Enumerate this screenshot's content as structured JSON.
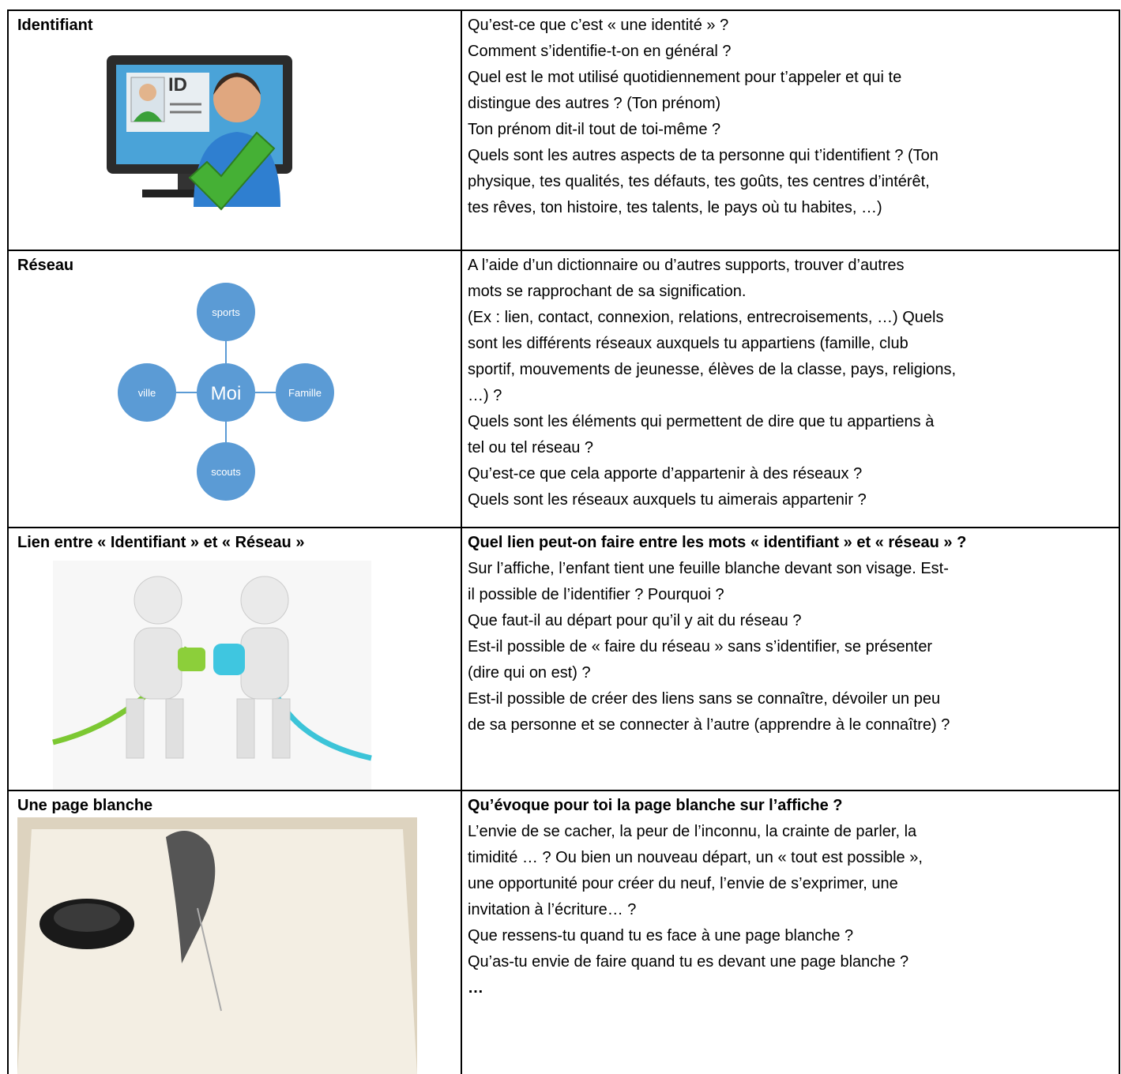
{
  "table": {
    "rows": [
      {
        "label": "Identifiant",
        "lines": [
          "Qu’est-ce que c’est « une identité » ?",
          "Comment s’identifie-t-on en général ?",
          "Quel est le mot utilisé quotidiennement pour t’appeler et qui te",
          "distingue des autres ? (Ton prénom)",
          "Ton prénom dit-il tout de toi-même ?",
          "Quels sont les autres aspects de ta personne qui t’identifient ? (Ton",
          "physique, tes qualités, tes défauts, tes goûts, tes centres d’intérêt,",
          "tes rêves, ton histoire, tes talents, le pays où tu habites, …)"
        ],
        "image_text": "ID"
      },
      {
        "label": "Réseau",
        "lines": [
          "A l’aide d’un dictionnaire ou d’autres supports, trouver d’autres",
          "mots se rapprochant de sa signification.",
          "(Ex : lien, contact, connexion, relations, entrecroisements, …) Quels",
          "sont les différents réseaux auxquels tu appartiens (famille, club",
          "sportif, mouvements de jeunesse, élèves de la classe, pays, religions,",
          "…) ?",
          "Quels sont les éléments qui permettent de dire que tu appartiens à",
          "tel ou tel réseau ?",
          "Qu’est-ce que cela apporte d’appartenir à des réseaux ?",
          "Quels sont les réseaux auxquels tu aimerais appartenir ?"
        ],
        "diagram": {
          "center": "Moi",
          "top": "sports",
          "left": "ville",
          "right": "Famille",
          "bottom": "scouts"
        }
      },
      {
        "label": "Lien entre « Identifiant » et « Réseau »",
        "question": "Quel lien peut-on faire entre les mots « identifiant » et « réseau » ?",
        "lines": [
          "Sur l’affiche, l’enfant tient une feuille blanche devant son visage. Est-",
          "il possible de l’identifier ? Pourquoi ?",
          "Que faut-il au départ pour qu’il y ait du réseau ?",
          "Est-il possible de « faire du réseau » sans s’identifier, se présenter",
          "(dire qui on est) ?",
          "Est-il possible de créer des liens sans se connaître, dévoiler un peu",
          "de sa personne et se connecter à l’autre (apprendre à le connaître) ?"
        ]
      },
      {
        "label": "Une page blanche",
        "question": "Qu’évoque pour toi la page blanche sur l’affiche ?",
        "lines": [
          "L’envie de se cacher, la peur de l’inconnu, la crainte de parler, la",
          "timidité … ?  Ou bien un nouveau départ, un « tout est possible »,",
          "une opportunité pour créer du neuf, l’envie de s’exprimer, une",
          "invitation à l’écriture… ?",
          "Que ressens-tu quand tu es face à une page blanche ?",
          "Qu’as-tu envie de faire quand tu es devant une page blanche ?"
        ],
        "closing": "…"
      }
    ]
  }
}
